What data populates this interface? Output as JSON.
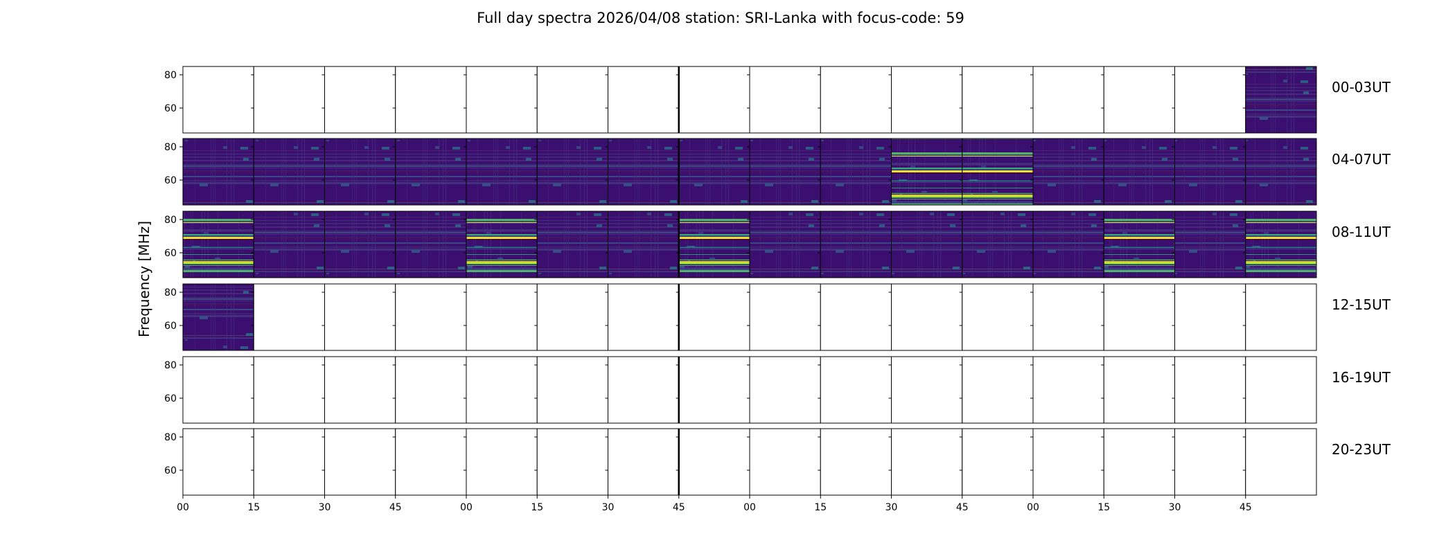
{
  "chart_data": {
    "type": "heatmap",
    "title": "Full day spectra 2026/04/08 station: SRI-Lanka with focus-code: 59",
    "ylabel": "Frequency [MHz]",
    "xlabel": "",
    "ylim": [
      45,
      85
    ],
    "ytick_labels": [
      "80",
      "60"
    ],
    "ytick_values": [
      80,
      60
    ],
    "xtick_labels": [
      "00",
      "15",
      "30",
      "45",
      "00",
      "15",
      "30",
      "45",
      "00",
      "15",
      "30",
      "45",
      "00",
      "15",
      "30",
      "45"
    ],
    "colormap": "viridis",
    "rows": [
      {
        "label": "00-03UT",
        "active": [
          15
        ],
        "hot": []
      },
      {
        "label": "04-07UT",
        "active": [
          0,
          1,
          2,
          3,
          4,
          5,
          6,
          7,
          8,
          9,
          10,
          11,
          12,
          13,
          14,
          15
        ],
        "hot": [
          10,
          11
        ]
      },
      {
        "label": "08-11UT",
        "active": [
          0,
          1,
          2,
          3,
          4,
          5,
          6,
          7,
          8,
          9,
          10,
          11,
          12,
          13,
          14,
          15
        ],
        "hot": [
          0,
          4,
          7,
          13,
          15
        ]
      },
      {
        "label": "12-15UT",
        "active": [
          0
        ],
        "hot": []
      },
      {
        "label": "16-19UT",
        "active": [],
        "hot": []
      },
      {
        "label": "20-23UT",
        "active": [],
        "hot": []
      }
    ]
  }
}
